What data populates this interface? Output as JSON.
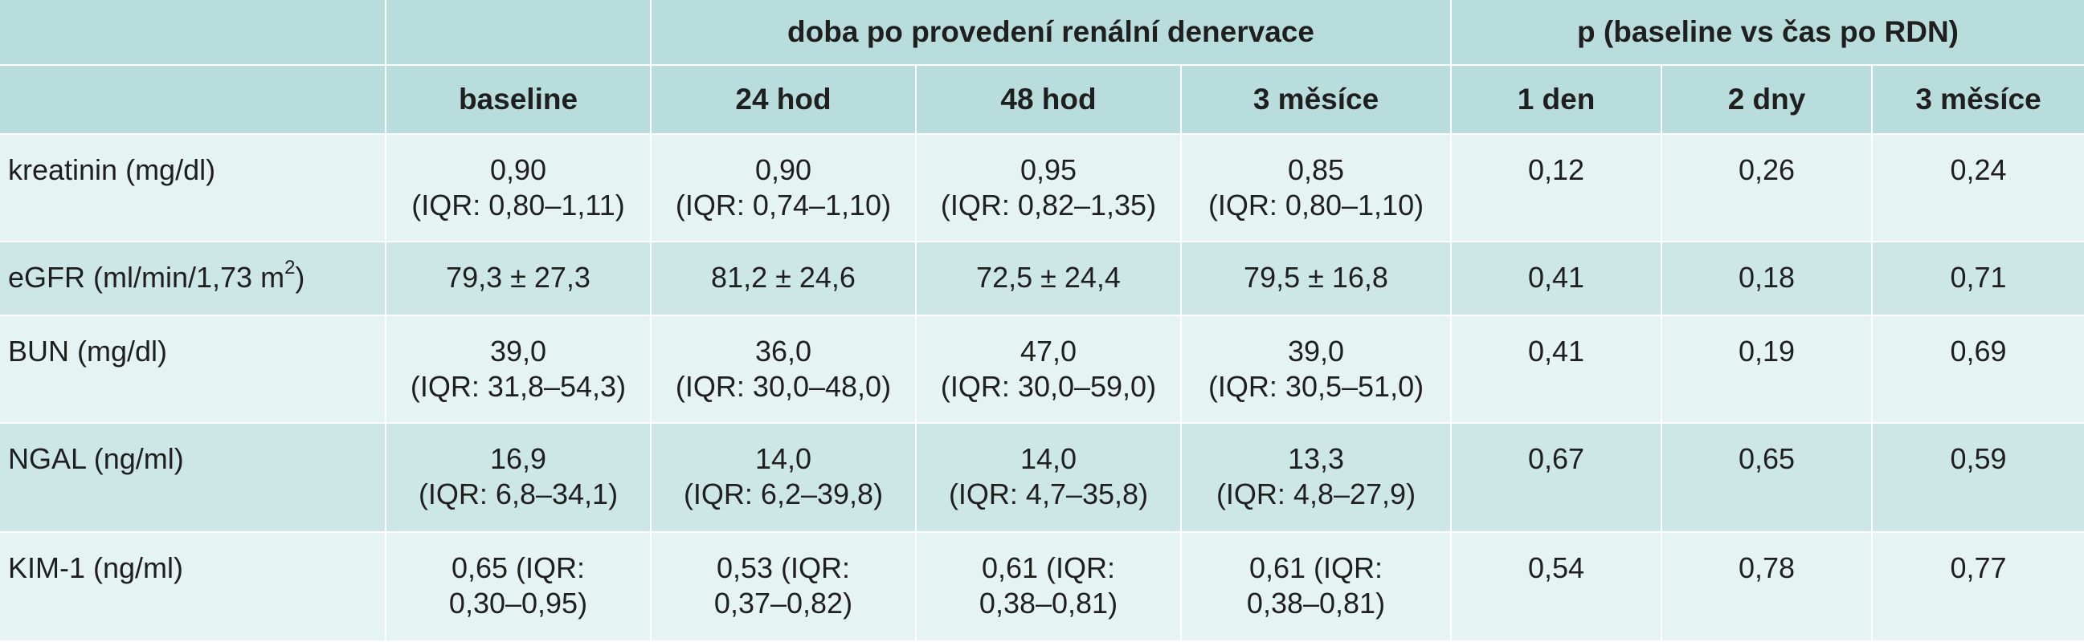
{
  "header": {
    "group1": "doba po provedení renální denervace",
    "group2": "p (baseline vs čas po RDN)",
    "columns": [
      "baseline",
      "24 hod",
      "48 hod",
      "3 měsíce",
      "1 den",
      "2 dny",
      "3 měsíce"
    ]
  },
  "rows": [
    {
      "label": "kreatinin (mg/dl)",
      "values": [
        [
          "0,90",
          "(IQR: 0,80–1,11)"
        ],
        [
          "0,90",
          "(IQR: 0,74–1,10)"
        ],
        [
          "0,95",
          "(IQR: 0,82–1,35)"
        ],
        [
          "0,85",
          "(IQR: 0,80–1,10)"
        ]
      ],
      "p": [
        "0,12",
        "0,26",
        "0,24"
      ]
    },
    {
      "label": "eGFR (ml/min/1,73 m",
      "label_sup": "2",
      "label_end": ")",
      "values": [
        [
          "79,3 ± 27,3"
        ],
        [
          "81,2 ± 24,6"
        ],
        [
          "72,5 ± 24,4"
        ],
        [
          "79,5 ± 16,8"
        ]
      ],
      "p": [
        "0,41",
        "0,18",
        "0,71"
      ]
    },
    {
      "label": "BUN (mg/dl)",
      "values": [
        [
          "39,0",
          "(IQR: 31,8–54,3)"
        ],
        [
          "36,0",
          "(IQR: 30,0–48,0)"
        ],
        [
          "47,0",
          "(IQR: 30,0–59,0)"
        ],
        [
          "39,0",
          "(IQR: 30,5–51,0)"
        ]
      ],
      "p": [
        "0,41",
        "0,19",
        "0,69"
      ]
    },
    {
      "label": "NGAL (ng/ml)",
      "values": [
        [
          "16,9",
          "(IQR: 6,8–34,1)"
        ],
        [
          "14,0",
          "(IQR: 6,2–39,8)"
        ],
        [
          "14,0",
          "(IQR: 4,7–35,8)"
        ],
        [
          "13,3",
          "(IQR: 4,8–27,9)"
        ]
      ],
      "p": [
        "0,67",
        "0,65",
        "0,59"
      ]
    },
    {
      "label": "KIM-1 (ng/ml)",
      "values": [
        [
          "0,65 (IQR:",
          "0,30–0,95)"
        ],
        [
          "0,53 (IQR:",
          "0,37–0,82)"
        ],
        [
          "0,61 (IQR:",
          "0,38–0,81)"
        ],
        [
          "0,61 (IQR:",
          "0,38–0,81)"
        ]
      ],
      "p": [
        "0,54",
        "0,78",
        "0,77"
      ]
    }
  ],
  "colors": {
    "header_bg": "#b9dcdc",
    "row_light": "#e6f3f3",
    "row_dark": "#cde6e6"
  }
}
